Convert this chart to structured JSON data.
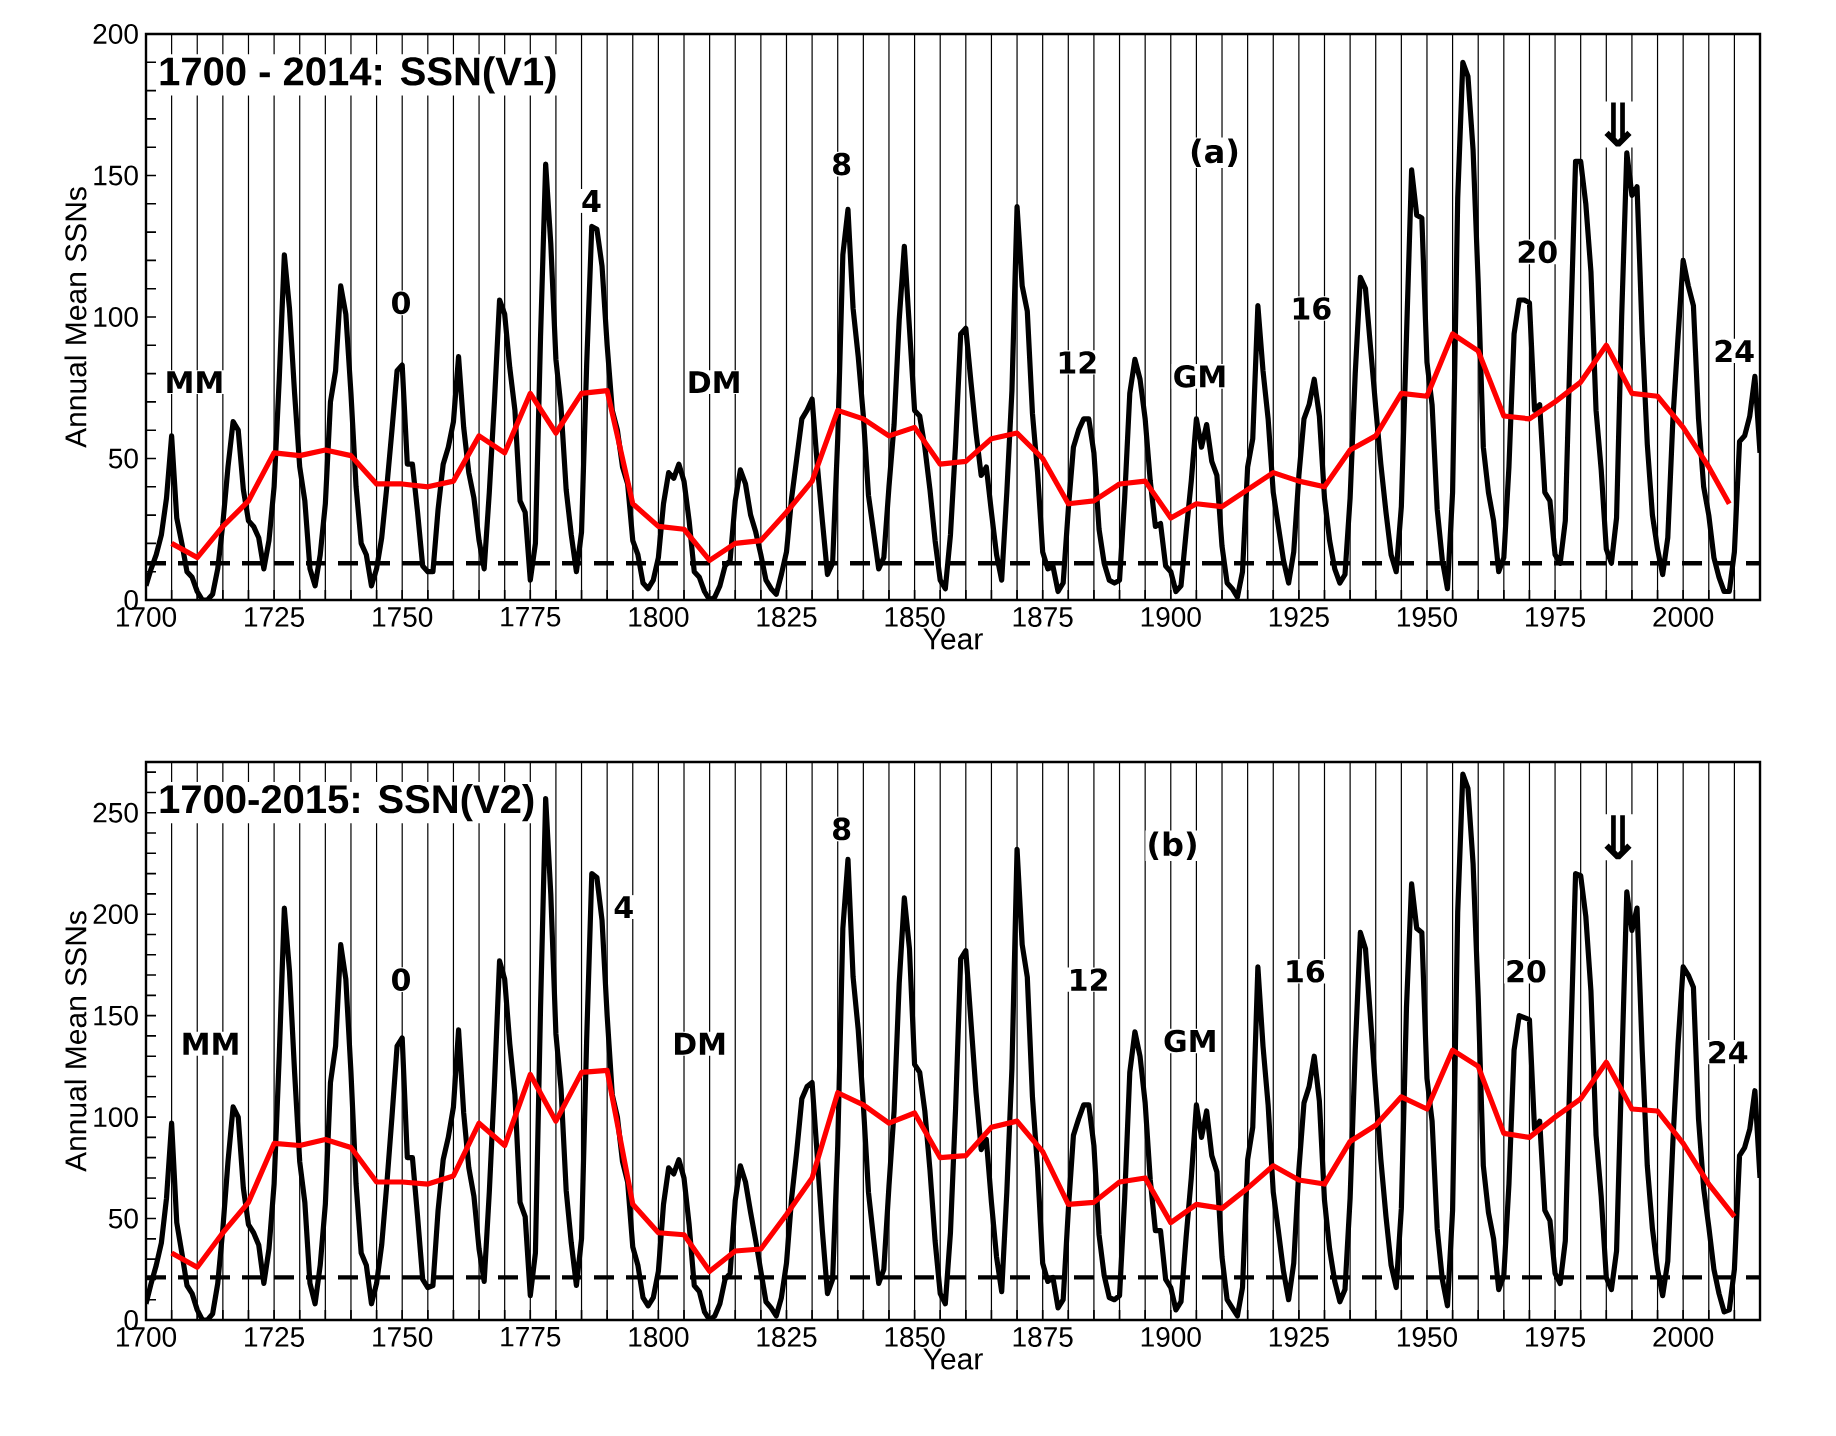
{
  "chart_data": [
    {
      "type": "line",
      "title": "1700 - 2014: SSN(V1)",
      "xlabel": "Year",
      "ylabel": "Annual Mean SSNs",
      "x": [
        1700,
        1701,
        1702,
        1703,
        1704,
        1705,
        1706,
        1707,
        1708,
        1709,
        1710,
        1711,
        1712,
        1713,
        1714,
        1715,
        1716,
        1717,
        1718,
        1719,
        1720,
        1721,
        1722,
        1723,
        1724,
        1725,
        1726,
        1727,
        1728,
        1729,
        1730,
        1731,
        1732,
        1733,
        1734,
        1735,
        1736,
        1737,
        1738,
        1739,
        1740,
        1741,
        1742,
        1743,
        1744,
        1745,
        1746,
        1747,
        1748,
        1749,
        1750,
        1751,
        1752,
        1753,
        1754,
        1755,
        1756,
        1757,
        1758,
        1759,
        1760,
        1761,
        1762,
        1763,
        1764,
        1765,
        1766,
        1767,
        1768,
        1769,
        1770,
        1771,
        1772,
        1773,
        1774,
        1775,
        1776,
        1777,
        1778,
        1779,
        1780,
        1781,
        1782,
        1783,
        1784,
        1785,
        1786,
        1787,
        1788,
        1789,
        1790,
        1791,
        1792,
        1793,
        1794,
        1795,
        1796,
        1797,
        1798,
        1799,
        1800,
        1801,
        1802,
        1803,
        1804,
        1805,
        1806,
        1807,
        1808,
        1809,
        1810,
        1811,
        1812,
        1813,
        1814,
        1815,
        1816,
        1817,
        1818,
        1819,
        1820,
        1821,
        1822,
        1823,
        1824,
        1825,
        1826,
        1827,
        1828,
        1829,
        1830,
        1831,
        1832,
        1833,
        1834,
        1835,
        1836,
        1837,
        1838,
        1839,
        1840,
        1841,
        1842,
        1843,
        1844,
        1845,
        1846,
        1847,
        1848,
        1849,
        1850,
        1851,
        1852,
        1853,
        1854,
        1855,
        1856,
        1857,
        1858,
        1859,
        1860,
        1861,
        1862,
        1863,
        1864,
        1865,
        1866,
        1867,
        1868,
        1869,
        1870,
        1871,
        1872,
        1873,
        1874,
        1875,
        1876,
        1877,
        1878,
        1879,
        1880,
        1881,
        1882,
        1883,
        1884,
        1885,
        1886,
        1887,
        1888,
        1889,
        1890,
        1891,
        1892,
        1893,
        1894,
        1895,
        1896,
        1897,
        1898,
        1899,
        1900,
        1901,
        1902,
        1903,
        1904,
        1905,
        1906,
        1907,
        1908,
        1909,
        1910,
        1911,
        1912,
        1913,
        1914,
        1915,
        1916,
        1917,
        1918,
        1919,
        1920,
        1921,
        1922,
        1923,
        1924,
        1925,
        1926,
        1927,
        1928,
        1929,
        1930,
        1931,
        1932,
        1933,
        1934,
        1935,
        1936,
        1937,
        1938,
        1939,
        1940,
        1941,
        1942,
        1943,
        1944,
        1945,
        1946,
        1947,
        1948,
        1949,
        1950,
        1951,
        1952,
        1953,
        1954,
        1955,
        1956,
        1957,
        1958,
        1959,
        1960,
        1961,
        1962,
        1963,
        1964,
        1965,
        1966,
        1967,
        1968,
        1969,
        1970,
        1971,
        1972,
        1973,
        1974,
        1975,
        1976,
        1977,
        1978,
        1979,
        1980,
        1981,
        1982,
        1983,
        1984,
        1985,
        1986,
        1987,
        1988,
        1989,
        1990,
        1991,
        1992,
        1993,
        1994,
        1995,
        1996,
        1997,
        1998,
        1999,
        2000,
        2001,
        2002,
        2003,
        2004,
        2005,
        2006,
        2007,
        2008,
        2009,
        2010,
        2011,
        2012,
        2013,
        2014,
        2015
      ],
      "series": [
        {
          "color": "#000000",
          "values": [
            5,
            11,
            16,
            23,
            36,
            58,
            29,
            20,
            10,
            8,
            3,
            0,
            0,
            2,
            11,
            27,
            47,
            63,
            60,
            39,
            28,
            26,
            22,
            11,
            21,
            40,
            78,
            122,
            103,
            73,
            47,
            35,
            11,
            5,
            16,
            34,
            70,
            81,
            111,
            101,
            73,
            40,
            20,
            16,
            5,
            11,
            22,
            40,
            60,
            81,
            83,
            48,
            48,
            31,
            12,
            10,
            10,
            32,
            48,
            54,
            63,
            86,
            61,
            45,
            36,
            21,
            11,
            38,
            70,
            106,
            101,
            82,
            67,
            35,
            31,
            7,
            20,
            93,
            154,
            126,
            85,
            68,
            39,
            23,
            10,
            24,
            83,
            132,
            131,
            118,
            90,
            67,
            60,
            47,
            41,
            21,
            16,
            6,
            4,
            7,
            15,
            34,
            45,
            43,
            48,
            42,
            28,
            10,
            8,
            3,
            0,
            1,
            5,
            12,
            14,
            35,
            46,
            41,
            30,
            24,
            16,
            7,
            4,
            2,
            9,
            17,
            36,
            50,
            64,
            67,
            71,
            48,
            28,
            9,
            13,
            57,
            122,
            138,
            103,
            86,
            65,
            37,
            24,
            11,
            15,
            40,
            62,
            99,
            125,
            96,
            67,
            65,
            54,
            39,
            21,
            7,
            4,
            23,
            55,
            94,
            96,
            77,
            59,
            44,
            47,
            31,
            16,
            7,
            38,
            74,
            139,
            111,
            102,
            66,
            45,
            17,
            11,
            12,
            3,
            6,
            32,
            54,
            60,
            64,
            64,
            52,
            25,
            13,
            7,
            6,
            7,
            36,
            73,
            85,
            78,
            64,
            42,
            26,
            27,
            12,
            10,
            3,
            5,
            24,
            42,
            64,
            54,
            62,
            49,
            44,
            19,
            6,
            4,
            1,
            10,
            47,
            57,
            104,
            81,
            64,
            38,
            26,
            14,
            6,
            17,
            44,
            64,
            69,
            78,
            65,
            36,
            21,
            11,
            6,
            9,
            36,
            80,
            114,
            110,
            89,
            68,
            48,
            31,
            16,
            10,
            33,
            93,
            152,
            136,
            135,
            84,
            69,
            32,
            14,
            4,
            38,
            142,
            190,
            185,
            159,
            112,
            54,
            38,
            28,
            10,
            15,
            47,
            94,
            106,
            106,
            105,
            67,
            69,
            38,
            35,
            16,
            13,
            28,
            93,
            155,
            155,
            140,
            116,
            67,
            46,
            18,
            13,
            29,
            100,
            158,
            143,
            146,
            94,
            55,
            30,
            18,
            9,
            22,
            64,
            93,
            120,
            111,
            104,
            64,
            40,
            30,
            15,
            8,
            3,
            3,
            17,
            56,
            58,
            65,
            79,
            52
          ]
        },
        {
          "color": "#ff0000",
          "x": [
            1705,
            1710,
            1715,
            1720,
            1725,
            1730,
            1735,
            1740,
            1745,
            1750,
            1755,
            1760,
            1765,
            1770,
            1775,
            1780,
            1785,
            1790,
            1795,
            1800,
            1805,
            1810,
            1815,
            1820,
            1825,
            1830,
            1835,
            1840,
            1845,
            1850,
            1855,
            1860,
            1865,
            1870,
            1875,
            1880,
            1885,
            1890,
            1895,
            1900,
            1905,
            1910,
            1915,
            1920,
            1925,
            1930,
            1935,
            1940,
            1945,
            1950,
            1955,
            1960,
            1965,
            1970,
            1975,
            1980,
            1985,
            1990,
            1995,
            2000,
            2005,
            2009
          ],
          "values": [
            20,
            15,
            26,
            35,
            52,
            51,
            53,
            51,
            41,
            41,
            40,
            42,
            58,
            52,
            73,
            59,
            73,
            74,
            34,
            26,
            25,
            14,
            20,
            21,
            31,
            42,
            67,
            64,
            58,
            61,
            48,
            49,
            57,
            59,
            50,
            34,
            35,
            41,
            42,
            29,
            34,
            33,
            39,
            45,
            42,
            40,
            53,
            58,
            73,
            72,
            94,
            88,
            65,
            64,
            70,
            77,
            90,
            73,
            72,
            61,
            47,
            34
          ]
        }
      ],
      "xlim": [
        1700,
        2015
      ],
      "ylim": [
        0,
        200
      ],
      "xticks": [
        1700,
        {
          "value": 1705,
          "label": null
        },
        {
          "value": 1710,
          "label": null
        },
        {
          "value": 1715,
          "label": null
        },
        {
          "value": 1720,
          "label": null
        },
        1725,
        {
          "value": 1730,
          "label": null
        },
        {
          "value": 1735,
          "label": null
        },
        {
          "value": 1740,
          "label": null
        },
        {
          "value": 1745,
          "label": null
        },
        1750,
        {
          "value": 1755,
          "label": null
        },
        {
          "value": 1760,
          "label": null
        },
        {
          "value": 1765,
          "label": null
        },
        {
          "value": 1770,
          "label": null
        },
        1775,
        {
          "value": 1780,
          "label": null
        },
        {
          "value": 1785,
          "label": null
        },
        {
          "value": 1790,
          "label": null
        },
        {
          "value": 1795,
          "label": null
        },
        1800,
        {
          "value": 1805,
          "label": null
        },
        {
          "value": 1810,
          "label": null
        },
        {
          "value": 1815,
          "label": null
        },
        {
          "value": 1820,
          "label": null
        },
        1825,
        {
          "value": 1830,
          "label": null
        },
        {
          "value": 1835,
          "label": null
        },
        {
          "value": 1840,
          "label": null
        },
        {
          "value": 1845,
          "label": null
        },
        1850,
        {
          "value": 1855,
          "label": null
        },
        {
          "value": 1860,
          "label": null
        },
        {
          "value": 1865,
          "label": null
        },
        {
          "value": 1870,
          "label": null
        },
        1875,
        {
          "value": 1880,
          "label": null
        },
        {
          "value": 1885,
          "label": null
        },
        {
          "value": 1890,
          "label": null
        },
        {
          "value": 1895,
          "label": null
        },
        1900,
        {
          "value": 1905,
          "label": null
        },
        {
          "value": 1910,
          "label": null
        },
        {
          "value": 1915,
          "label": null
        },
        {
          "value": 1920,
          "label": null
        },
        1925,
        {
          "value": 1930,
          "label": null
        },
        {
          "value": 1935,
          "label": null
        },
        {
          "value": 1940,
          "label": null
        },
        {
          "value": 1945,
          "label": null
        },
        1950,
        {
          "value": 1955,
          "label": null
        },
        {
          "value": 1960,
          "label": null
        },
        {
          "value": 1965,
          "label": null
        },
        {
          "value": 1970,
          "label": null
        },
        1975,
        {
          "value": 1980,
          "label": null
        },
        {
          "value": 1985,
          "label": null
        },
        {
          "value": 1990,
          "label": null
        },
        {
          "value": 1995,
          "label": null
        },
        2000,
        {
          "value": 2005,
          "label": null
        },
        {
          "value": 2010,
          "label": null
        },
        {
          "value": 2015,
          "label": null
        }
      ],
      "yticks": [
        0,
        {
          "value": 10,
          "label": null
        },
        {
          "value": 20,
          "label": null
        },
        {
          "value": 30,
          "label": null
        },
        {
          "value": 40,
          "label": null
        },
        50,
        {
          "value": 60,
          "label": null
        },
        {
          "value": 70,
          "label": null
        },
        {
          "value": 80,
          "label": null
        },
        {
          "value": 90,
          "label": null
        },
        100,
        {
          "value": 110,
          "label": null
        },
        {
          "value": 120,
          "label": null
        },
        {
          "value": 130,
          "label": null
        },
        {
          "value": 140,
          "label": null
        },
        150,
        {
          "value": 160,
          "label": null
        },
        {
          "value": 170,
          "label": null
        },
        {
          "value": 180,
          "label": null
        },
        {
          "value": 190,
          "label": null
        },
        200
      ],
      "grid": "x",
      "ref_lines": [
        {
          "axis": "y",
          "value": 13,
          "color": "#000000",
          "line_style": "dashed"
        }
      ],
      "annotations": [
        "MM",
        "0",
        "4",
        "DM",
        "8",
        "(a)",
        "12",
        "GM",
        "16",
        "20",
        "24",
        "⇓"
      ]
    },
    {
      "type": "line",
      "title": "1700-2015: SSN(V2)",
      "xlabel": "Year",
      "ylabel": "Annual Mean SSNs",
      "x": [
        1700,
        1701,
        1702,
        1703,
        1704,
        1705,
        1706,
        1707,
        1708,
        1709,
        1710,
        1711,
        1712,
        1713,
        1714,
        1715,
        1716,
        1717,
        1718,
        1719,
        1720,
        1721,
        1722,
        1723,
        1724,
        1725,
        1726,
        1727,
        1728,
        1729,
        1730,
        1731,
        1732,
        1733,
        1734,
        1735,
        1736,
        1737,
        1738,
        1739,
        1740,
        1741,
        1742,
        1743,
        1744,
        1745,
        1746,
        1747,
        1748,
        1749,
        1750,
        1751,
        1752,
        1753,
        1754,
        1755,
        1756,
        1757,
        1758,
        1759,
        1760,
        1761,
        1762,
        1763,
        1764,
        1765,
        1766,
        1767,
        1768,
        1769,
        1770,
        1771,
        1772,
        1773,
        1774,
        1775,
        1776,
        1777,
        1778,
        1779,
        1780,
        1781,
        1782,
        1783,
        1784,
        1785,
        1786,
        1787,
        1788,
        1789,
        1790,
        1791,
        1792,
        1793,
        1794,
        1795,
        1796,
        1797,
        1798,
        1799,
        1800,
        1801,
        1802,
        1803,
        1804,
        1805,
        1806,
        1807,
        1808,
        1809,
        1810,
        1811,
        1812,
        1813,
        1814,
        1815,
        1816,
        1817,
        1818,
        1819,
        1820,
        1821,
        1822,
        1823,
        1824,
        1825,
        1826,
        1827,
        1828,
        1829,
        1830,
        1831,
        1832,
        1833,
        1834,
        1835,
        1836,
        1837,
        1838,
        1839,
        1840,
        1841,
        1842,
        1843,
        1844,
        1845,
        1846,
        1847,
        1848,
        1849,
        1850,
        1851,
        1852,
        1853,
        1854,
        1855,
        1856,
        1857,
        1858,
        1859,
        1860,
        1861,
        1862,
        1863,
        1864,
        1865,
        1866,
        1867,
        1868,
        1869,
        1870,
        1871,
        1872,
        1873,
        1874,
        1875,
        1876,
        1877,
        1878,
        1879,
        1880,
        1881,
        1882,
        1883,
        1884,
        1885,
        1886,
        1887,
        1888,
        1889,
        1890,
        1891,
        1892,
        1893,
        1894,
        1895,
        1896,
        1897,
        1898,
        1899,
        1900,
        1901,
        1902,
        1903,
        1904,
        1905,
        1906,
        1907,
        1908,
        1909,
        1910,
        1911,
        1912,
        1913,
        1914,
        1915,
        1916,
        1917,
        1918,
        1919,
        1920,
        1921,
        1922,
        1923,
        1924,
        1925,
        1926,
        1927,
        1928,
        1929,
        1930,
        1931,
        1932,
        1933,
        1934,
        1935,
        1936,
        1937,
        1938,
        1939,
        1940,
        1941,
        1942,
        1943,
        1944,
        1945,
        1946,
        1947,
        1948,
        1949,
        1950,
        1951,
        1952,
        1953,
        1954,
        1955,
        1956,
        1957,
        1958,
        1959,
        1960,
        1961,
        1962,
        1963,
        1964,
        1965,
        1966,
        1967,
        1968,
        1969,
        1970,
        1971,
        1972,
        1973,
        1974,
        1975,
        1976,
        1977,
        1978,
        1979,
        1980,
        1981,
        1982,
        1983,
        1984,
        1985,
        1986,
        1987,
        1988,
        1989,
        1990,
        1991,
        1992,
        1993,
        1994,
        1995,
        1996,
        1997,
        1998,
        1999,
        2000,
        2001,
        2002,
        2003,
        2004,
        2005,
        2006,
        2007,
        2008,
        2009,
        2010,
        2011,
        2012,
        2013,
        2014,
        2015
      ],
      "series": [
        {
          "color": "#000000",
          "values": [
            8,
            18,
            27,
            38,
            60,
            97,
            48,
            33,
            17,
            13,
            5,
            0,
            0,
            3,
            18,
            45,
            78,
            105,
            100,
            65,
            47,
            43,
            37,
            18,
            35,
            67,
            130,
            203,
            172,
            122,
            78,
            58,
            18,
            8,
            27,
            57,
            117,
            135,
            185,
            168,
            122,
            67,
            33,
            27,
            8,
            18,
            37,
            67,
            100,
            135,
            139,
            80,
            80,
            51,
            20,
            16,
            17,
            54,
            79,
            90,
            105,
            143,
            102,
            75,
            61,
            35,
            19,
            63,
            116,
            177,
            168,
            136,
            111,
            58,
            51,
            12,
            33,
            154,
            257,
            210,
            141,
            114,
            64,
            38,
            17,
            40,
            138,
            220,
            218,
            197,
            150,
            111,
            100,
            78,
            68,
            36,
            27,
            11,
            7,
            11,
            24,
            57,
            75,
            72,
            79,
            70,
            47,
            17,
            14,
            4,
            0,
            2,
            8,
            20,
            23,
            59,
            76,
            68,
            53,
            39,
            24,
            9,
            6,
            2,
            11,
            28,
            60,
            83,
            109,
            115,
            117,
            81,
            44,
            13,
            20,
            86,
            193,
            227,
            169,
            143,
            106,
            63,
            40,
            18,
            25,
            66,
            103,
            166,
            208,
            183,
            126,
            122,
            103,
            74,
            39,
            13,
            8,
            43,
            104,
            178,
            182,
            147,
            112,
            84,
            89,
            58,
            31,
            14,
            63,
            124,
            232,
            185,
            169,
            110,
            75,
            28,
            19,
            21,
            6,
            10,
            54,
            91,
            99,
            106,
            106,
            86,
            42,
            22,
            11,
            10,
            12,
            60,
            122,
            142,
            130,
            107,
            69,
            44,
            44,
            20,
            16,
            5,
            9,
            41,
            70,
            106,
            90,
            103,
            81,
            73,
            31,
            10,
            6,
            2,
            16,
            79,
            95,
            174,
            135,
            106,
            63,
            44,
            24,
            10,
            28,
            74,
            107,
            115,
            130,
            108,
            59,
            35,
            19,
            9,
            15,
            60,
            133,
            191,
            183,
            148,
            113,
            79,
            51,
            27,
            16,
            55,
            154,
            215,
            193,
            191,
            119,
            98,
            45,
            20,
            7,
            54,
            201,
            269,
            262,
            225,
            159,
            76,
            53,
            40,
            15,
            22,
            67,
            133,
            150,
            149,
            148,
            94,
            98,
            54,
            49,
            23,
            18,
            39,
            131,
            220,
            219,
            199,
            162,
            91,
            61,
            21,
            15,
            34,
            123,
            211,
            192,
            203,
            133,
            76,
            45,
            25,
            12,
            29,
            88,
            136,
            174,
            170,
            164,
            99,
            65,
            46,
            25,
            13,
            4,
            5,
            25,
            81,
            85,
            94,
            113,
            70
          ]
        },
        {
          "color": "#ff0000",
          "x": [
            1705,
            1710,
            1715,
            1720,
            1725,
            1730,
            1735,
            1740,
            1745,
            1750,
            1755,
            1760,
            1765,
            1770,
            1775,
            1780,
            1785,
            1790,
            1795,
            1800,
            1805,
            1810,
            1815,
            1820,
            1825,
            1830,
            1835,
            1840,
            1845,
            1850,
            1855,
            1860,
            1865,
            1870,
            1875,
            1880,
            1885,
            1890,
            1895,
            1900,
            1905,
            1910,
            1915,
            1920,
            1925,
            1930,
            1935,
            1940,
            1945,
            1950,
            1955,
            1960,
            1965,
            1970,
            1975,
            1980,
            1985,
            1990,
            1995,
            2000,
            2005,
            2010
          ],
          "values": [
            33,
            26,
            43,
            58,
            87,
            86,
            89,
            85,
            68,
            68,
            67,
            71,
            97,
            86,
            121,
            98,
            122,
            123,
            57,
            43,
            42,
            24,
            34,
            35,
            52,
            70,
            112,
            106,
            97,
            102,
            80,
            81,
            95,
            98,
            83,
            57,
            58,
            68,
            70,
            48,
            57,
            55,
            65,
            76,
            69,
            67,
            88,
            96,
            110,
            104,
            133,
            125,
            92,
            90,
            100,
            109,
            127,
            104,
            103,
            87,
            67,
            51
          ]
        }
      ],
      "xlim": [
        1700,
        2015
      ],
      "ylim": [
        0,
        275
      ],
      "xticks": [
        1700,
        {
          "value": 1705,
          "label": null
        },
        {
          "value": 1710,
          "label": null
        },
        {
          "value": 1715,
          "label": null
        },
        {
          "value": 1720,
          "label": null
        },
        1725,
        {
          "value": 1730,
          "label": null
        },
        {
          "value": 1735,
          "label": null
        },
        {
          "value": 1740,
          "label": null
        },
        {
          "value": 1745,
          "label": null
        },
        1750,
        {
          "value": 1755,
          "label": null
        },
        {
          "value": 1760,
          "label": null
        },
        {
          "value": 1765,
          "label": null
        },
        {
          "value": 1770,
          "label": null
        },
        1775,
        {
          "value": 1780,
          "label": null
        },
        {
          "value": 1785,
          "label": null
        },
        {
          "value": 1790,
          "label": null
        },
        {
          "value": 1795,
          "label": null
        },
        1800,
        {
          "value": 1805,
          "label": null
        },
        {
          "value": 1810,
          "label": null
        },
        {
          "value": 1815,
          "label": null
        },
        {
          "value": 1820,
          "label": null
        },
        1825,
        {
          "value": 1830,
          "label": null
        },
        {
          "value": 1835,
          "label": null
        },
        {
          "value": 1840,
          "label": null
        },
        {
          "value": 1845,
          "label": null
        },
        1850,
        {
          "value": 1855,
          "label": null
        },
        {
          "value": 1860,
          "label": null
        },
        {
          "value": 1865,
          "label": null
        },
        {
          "value": 1870,
          "label": null
        },
        1875,
        {
          "value": 1880,
          "label": null
        },
        {
          "value": 1885,
          "label": null
        },
        {
          "value": 1890,
          "label": null
        },
        {
          "value": 1895,
          "label": null
        },
        1900,
        {
          "value": 1905,
          "label": null
        },
        {
          "value": 1910,
          "label": null
        },
        {
          "value": 1915,
          "label": null
        },
        {
          "value": 1920,
          "label": null
        },
        1925,
        {
          "value": 1930,
          "label": null
        },
        {
          "value": 1935,
          "label": null
        },
        {
          "value": 1940,
          "label": null
        },
        {
          "value": 1945,
          "label": null
        },
        1950,
        {
          "value": 1955,
          "label": null
        },
        {
          "value": 1960,
          "label": null
        },
        {
          "value": 1965,
          "label": null
        },
        {
          "value": 1970,
          "label": null
        },
        1975,
        {
          "value": 1980,
          "label": null
        },
        {
          "value": 1985,
          "label": null
        },
        {
          "value": 1990,
          "label": null
        },
        {
          "value": 1995,
          "label": null
        },
        2000,
        {
          "value": 2005,
          "label": null
        },
        {
          "value": 2010,
          "label": null
        },
        {
          "value": 2015,
          "label": null
        }
      ],
      "yticks": [
        0,
        {
          "value": 10,
          "label": null
        },
        {
          "value": 20,
          "label": null
        },
        {
          "value": 30,
          "label": null
        },
        {
          "value": 40,
          "label": null
        },
        50,
        {
          "value": 60,
          "label": null
        },
        {
          "value": 70,
          "label": null
        },
        {
          "value": 80,
          "label": null
        },
        {
          "value": 90,
          "label": null
        },
        100,
        {
          "value": 110,
          "label": null
        },
        {
          "value": 120,
          "label": null
        },
        {
          "value": 130,
          "label": null
        },
        {
          "value": 140,
          "label": null
        },
        150,
        {
          "value": 160,
          "label": null
        },
        {
          "value": 170,
          "label": null
        },
        {
          "value": 180,
          "label": null
        },
        {
          "value": 190,
          "label": null
        },
        200,
        {
          "value": 210,
          "label": null
        },
        {
          "value": 220,
          "label": null
        },
        {
          "value": 230,
          "label": null
        },
        {
          "value": 240,
          "label": null
        },
        250,
        {
          "value": 260,
          "label": null
        },
        {
          "value": 270,
          "label": null
        }
      ],
      "grid": "x",
      "ref_lines": [
        {
          "axis": "y",
          "value": 21,
          "color": "#000000",
          "line_style": "dashed"
        }
      ],
      "annotations": [
        "MM",
        "0",
        "4",
        "DM",
        "8",
        "(b)",
        "12",
        "GM",
        "16",
        "20",
        "24",
        "⇓"
      ]
    }
  ]
}
